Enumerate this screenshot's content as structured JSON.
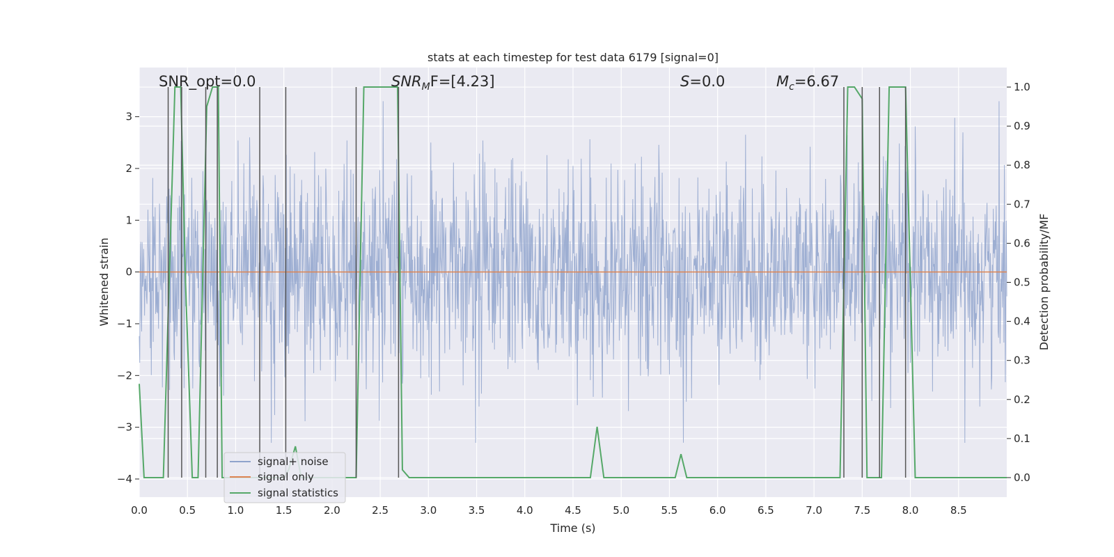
{
  "chart_data": {
    "type": "line",
    "title": "stats at each timestep for test data 6179 [signal=0]",
    "xlabel": "Time (s)",
    "ylabel_left": "Whitened strain",
    "ylabel_right": "Detection probability/MF",
    "xlim": [
      0.0,
      9.0
    ],
    "ylim_left": [
      -4.35,
      3.95
    ],
    "ylim_right": [
      -0.05,
      1.05
    ],
    "x_ticks": [
      "0.0",
      "0.5",
      "1.0",
      "1.5",
      "2.0",
      "2.5",
      "3.0",
      "3.5",
      "4.0",
      "4.5",
      "5.0",
      "5.5",
      "6.0",
      "6.5",
      "7.0",
      "7.5",
      "8.0",
      "8.5"
    ],
    "y_ticks_left": [
      "3",
      "2",
      "1",
      "0",
      "−1",
      "−2",
      "−3",
      "−4"
    ],
    "y_ticks_right": [
      "1.0",
      "0.9",
      "0.8",
      "0.7",
      "0.6",
      "0.5",
      "0.4",
      "0.3",
      "0.2",
      "0.1",
      "0.0"
    ],
    "grid": true,
    "legend_position": "lower-left",
    "annotations": {
      "snr_opt": "SNR_opt=0.0",
      "snr_mf_var": "SNR",
      "snr_mf_sub": "M",
      "snr_mf_tail": "F=[4.23]",
      "s_var": "S",
      "s_tail": "=0.0",
      "mc_var": "M",
      "mc_sub": "c",
      "mc_tail": "=6.67"
    },
    "series": [
      {
        "name": "signal+ noise",
        "axis": "left",
        "color": "#8fa3cc",
        "description": "whitened noisy strain, roughly Gaussian with std about 1, range about -3.3 to 3.3",
        "envelope_std": 1.0
      },
      {
        "name": "signal only",
        "axis": "left",
        "color": "#dd8452",
        "x": [
          0.0,
          9.0
        ],
        "y": [
          0.0,
          0.0
        ]
      },
      {
        "name": "signal statistics",
        "axis": "right",
        "color": "#55a868",
        "x": [
          0.0,
          0.05,
          0.25,
          0.31,
          0.37,
          0.43,
          0.48,
          0.55,
          0.61,
          0.7,
          0.76,
          0.82,
          0.86,
          0.92,
          1.0,
          1.5,
          1.55,
          1.62,
          1.68,
          2.0,
          2.1,
          2.25,
          2.33,
          2.5,
          2.68,
          2.73,
          2.8,
          3.0,
          3.5,
          4.0,
          4.5,
          4.68,
          4.75,
          4.82,
          5.0,
          5.5,
          5.56,
          5.62,
          5.68,
          6.0,
          6.5,
          7.0,
          7.27,
          7.35,
          7.42,
          7.5,
          7.55,
          7.62,
          7.7,
          7.78,
          7.95,
          8.05,
          8.1,
          8.5,
          9.0
        ],
        "y": [
          0.24,
          0.0,
          0.0,
          0.5,
          1.0,
          1.0,
          0.5,
          0.0,
          0.0,
          0.95,
          1.0,
          1.0,
          0.0,
          0.0,
          0.0,
          0.0,
          0.02,
          0.08,
          0.0,
          0.0,
          0.0,
          0.0,
          1.0,
          1.0,
          1.0,
          0.02,
          0.0,
          0.0,
          0.0,
          0.0,
          0.0,
          0.0,
          0.13,
          0.0,
          0.0,
          0.0,
          0.0,
          0.06,
          0.0,
          0.0,
          0.0,
          0.0,
          0.0,
          1.0,
          1.0,
          0.97,
          0.0,
          0.0,
          0.0,
          1.0,
          1.0,
          0.0,
          0.0,
          0.0,
          0.0
        ]
      }
    ],
    "vertical_markers_x": [
      0.3,
      0.44,
      0.69,
      0.81,
      1.25,
      1.52,
      2.25,
      2.69,
      7.31,
      7.5,
      7.68,
      7.95
    ]
  }
}
